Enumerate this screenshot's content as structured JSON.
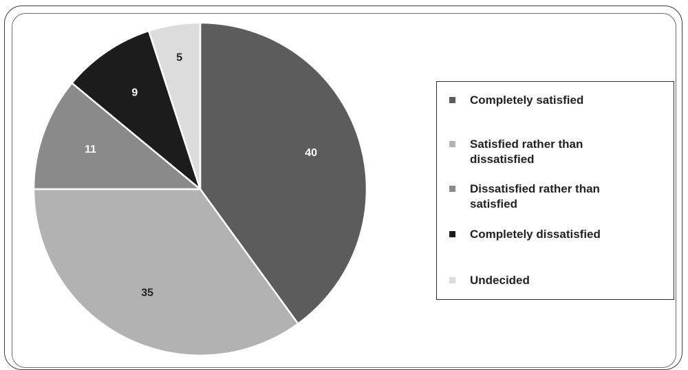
{
  "chart_data": {
    "type": "pie",
    "title": "",
    "slices": [
      {
        "label": "Completely satisfied",
        "value": 40,
        "color": "#5c5c5c",
        "label_color": "#ffffff"
      },
      {
        "label": "Satisfied rather than dissatisfied",
        "value": 35,
        "color": "#b2b2b2",
        "label_color": "#222222"
      },
      {
        "label": "Dissatisfied rather than satisfied",
        "value": 11,
        "color": "#8a8a8a",
        "label_color": "#ffffff"
      },
      {
        "label": "Completely dissatisfied",
        "value": 9,
        "color": "#1c1c1c",
        "label_color": "#ffffff"
      },
      {
        "label": "Undecided",
        "value": 5,
        "color": "#dcdcdc",
        "label_color": "#222222"
      }
    ],
    "start_angle_deg": 0,
    "direction": "clockwise",
    "legend_position": "right",
    "slice_border_color": "#ffffff"
  },
  "legend": {
    "items": [
      {
        "label": "Completely satisfied",
        "color": "#5c5c5c"
      },
      {
        "label": "Satisfied rather than dissatisfied",
        "color": "#b2b2b2"
      },
      {
        "label": "Dissatisfied rather than satisfied",
        "color": "#8a8a8a"
      },
      {
        "label": "Completely dissatisfied",
        "color": "#1c1c1c"
      },
      {
        "label": "Undecided",
        "color": "#dcdcdc"
      }
    ]
  }
}
